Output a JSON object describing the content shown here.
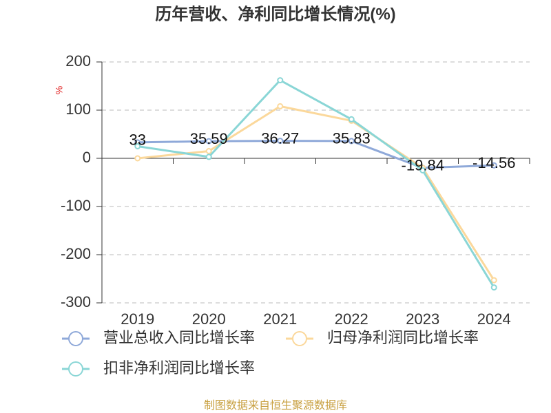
{
  "chart_data": {
    "type": "line",
    "title": "历年营收、净利同比增长情况(%)",
    "y_label": "%",
    "source": "制图数据来自恒生聚源数据库",
    "categories": [
      "2019",
      "2020",
      "2021",
      "2022",
      "2023",
      "2024"
    ],
    "series": [
      {
        "name": "营业总收入同比增长率",
        "color": "#8fa9d9",
        "values": [
          33,
          35.59,
          36.27,
          35.83,
          -19.84,
          -14.56
        ],
        "show_labels": true
      },
      {
        "name": "归母净利润同比增长率",
        "color": "#fbd89b",
        "values": [
          0,
          15,
          108,
          78,
          -20,
          -253
        ]
      },
      {
        "name": "扣非净利润同比增长率",
        "color": "#8ad6d6",
        "values": [
          25,
          3,
          162,
          81,
          -25,
          -268
        ]
      }
    ],
    "ylim": [
      -300,
      200
    ],
    "yticks": [
      -300,
      -200,
      -100,
      0,
      100,
      200
    ],
    "grid": true
  }
}
